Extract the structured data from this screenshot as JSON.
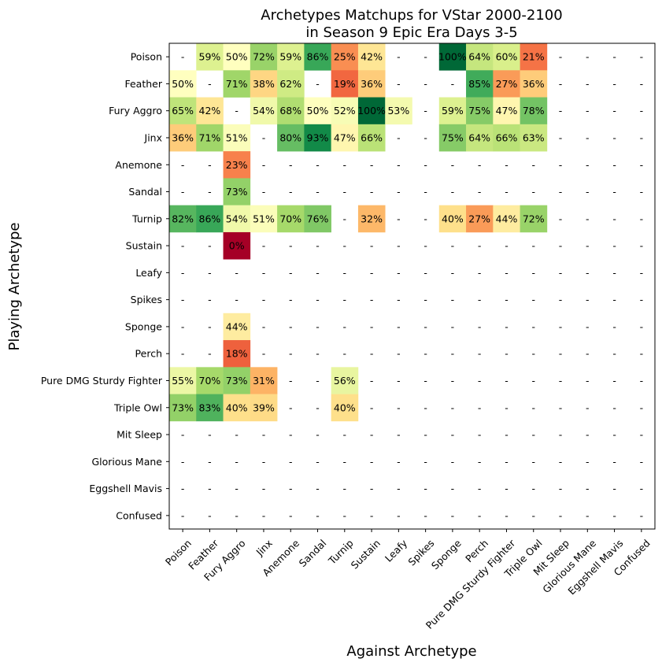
{
  "chart_data": {
    "type": "heatmap",
    "title_lines": [
      "Archetypes Matchups for VStar 2000-2100",
      "in Season 9 Epic Era Days 3-5"
    ],
    "xlabel": "Against Archetype",
    "ylabel": "Playing Archetype",
    "empty_label": "-",
    "color_scale": "RdYlGn",
    "value_range": [
      0,
      100
    ],
    "rows": [
      "Poison",
      "Feather",
      "Fury Aggro",
      "Jinx",
      "Anemone",
      "Sandal",
      "Turnip",
      "Sustain",
      "Leafy",
      "Spikes",
      "Sponge",
      "Perch",
      "Pure DMG Sturdy Fighter",
      "Triple Owl",
      "Mit Sleep",
      "Glorious Mane",
      "Eggshell Mavis",
      "Confused"
    ],
    "columns": [
      "Poison",
      "Feather",
      "Fury Aggro",
      "Jinx",
      "Anemone",
      "Sandal",
      "Turnip",
      "Sustain",
      "Leafy",
      "Spikes",
      "Sponge",
      "Perch",
      "Pure DMG Sturdy Fighter",
      "Triple Owl",
      "Mit Sleep",
      "Glorious Mane",
      "Eggshell Mavis",
      "Confused"
    ],
    "values": [
      [
        null,
        59,
        50,
        72,
        59,
        86,
        25,
        42,
        null,
        null,
        100,
        64,
        60,
        21,
        null,
        null,
        null,
        null
      ],
      [
        50,
        null,
        71,
        38,
        62,
        null,
        19,
        36,
        null,
        null,
        null,
        85,
        27,
        36,
        null,
        null,
        null,
        null
      ],
      [
        65,
        42,
        null,
        54,
        68,
        50,
        52,
        100,
        53,
        null,
        59,
        75,
        47,
        78,
        null,
        null,
        null,
        null
      ],
      [
        36,
        71,
        51,
        null,
        80,
        93,
        47,
        66,
        null,
        null,
        75,
        64,
        66,
        63,
        null,
        null,
        null,
        null
      ],
      [
        null,
        null,
        23,
        null,
        null,
        null,
        null,
        null,
        null,
        null,
        null,
        null,
        null,
        null,
        null,
        null,
        null,
        null
      ],
      [
        null,
        null,
        73,
        null,
        null,
        null,
        null,
        null,
        null,
        null,
        null,
        null,
        null,
        null,
        null,
        null,
        null,
        null
      ],
      [
        82,
        86,
        54,
        51,
        70,
        76,
        null,
        32,
        null,
        null,
        40,
        27,
        44,
        72,
        null,
        null,
        null,
        null
      ],
      [
        null,
        null,
        0,
        null,
        null,
        null,
        null,
        null,
        null,
        null,
        null,
        null,
        null,
        null,
        null,
        null,
        null,
        null
      ],
      [
        null,
        null,
        null,
        null,
        null,
        null,
        null,
        null,
        null,
        null,
        null,
        null,
        null,
        null,
        null,
        null,
        null,
        null
      ],
      [
        null,
        null,
        null,
        null,
        null,
        null,
        null,
        null,
        null,
        null,
        null,
        null,
        null,
        null,
        null,
        null,
        null,
        null
      ],
      [
        null,
        null,
        44,
        null,
        null,
        null,
        null,
        null,
        null,
        null,
        null,
        null,
        null,
        null,
        null,
        null,
        null,
        null
      ],
      [
        null,
        null,
        18,
        null,
        null,
        null,
        null,
        null,
        null,
        null,
        null,
        null,
        null,
        null,
        null,
        null,
        null,
        null
      ],
      [
        55,
        70,
        73,
        31,
        null,
        null,
        56,
        null,
        null,
        null,
        null,
        null,
        null,
        null,
        null,
        null,
        null,
        null
      ],
      [
        73,
        83,
        40,
        39,
        null,
        null,
        40,
        null,
        null,
        null,
        null,
        null,
        null,
        null,
        null,
        null,
        null,
        null
      ],
      [
        null,
        null,
        null,
        null,
        null,
        null,
        null,
        null,
        null,
        null,
        null,
        null,
        null,
        null,
        null,
        null,
        null,
        null
      ],
      [
        null,
        null,
        null,
        null,
        null,
        null,
        null,
        null,
        null,
        null,
        null,
        null,
        null,
        null,
        null,
        null,
        null,
        null
      ],
      [
        null,
        null,
        null,
        null,
        null,
        null,
        null,
        null,
        null,
        null,
        null,
        null,
        null,
        null,
        null,
        null,
        null,
        null
      ],
      [
        null,
        null,
        null,
        null,
        null,
        null,
        null,
        null,
        null,
        null,
        null,
        null,
        null,
        null,
        null,
        null,
        null,
        null
      ]
    ]
  }
}
